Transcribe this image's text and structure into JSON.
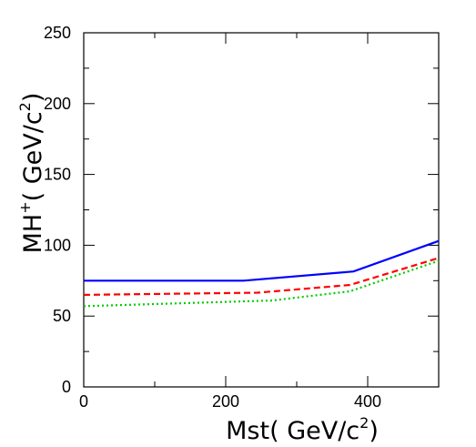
{
  "chart_data": {
    "type": "line",
    "title": "",
    "xlabel": {
      "prefix": "Mst( GeV/c",
      "sup": "2",
      "suffix": ")"
    },
    "ylabel": {
      "prefix": "MH",
      "sup1": "+",
      "middle": "( GeV/c",
      "sup2": "2",
      "suffix": ")"
    },
    "xlim": [
      0,
      500
    ],
    "ylim": [
      0,
      250
    ],
    "x_ticks": [
      0,
      200,
      400
    ],
    "y_ticks": [
      0,
      50,
      100,
      150,
      200,
      250
    ],
    "x_tick_labels": [
      "0",
      "200",
      "400"
    ],
    "y_tick_labels": [
      "0",
      "50",
      "100",
      "150",
      "200",
      "250"
    ],
    "grid": false,
    "series": [
      {
        "style": "solid",
        "color": "#0000ff",
        "x": [
          0,
          225,
          380,
          500
        ],
        "y": [
          75,
          75,
          81.5,
          103
        ]
      },
      {
        "style": "dashed",
        "color": "#ff0000",
        "x": [
          0,
          245,
          375,
          500
        ],
        "y": [
          65,
          66.5,
          72,
          91
        ]
      },
      {
        "style": "dotted",
        "color": "#00cc00",
        "x": [
          0,
          265,
          375,
          500
        ],
        "y": [
          57,
          61,
          67.5,
          89
        ]
      }
    ]
  }
}
